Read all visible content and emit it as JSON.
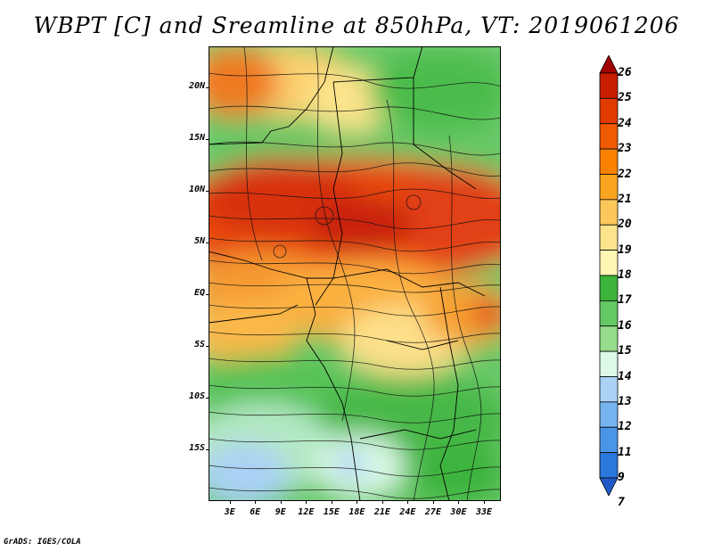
{
  "title": "WBPT [C] and Sreamline at 850hPa, VT: 2019061206",
  "footer": "GrADS: IGES/COLA",
  "map": {
    "lat_labels": [
      "20N",
      "15N",
      "10N",
      "5N",
      "EQ",
      "5S",
      "10S",
      "15S"
    ],
    "lon_labels": [
      "3E",
      "6E",
      "9E",
      "12E",
      "15E",
      "18E",
      "21E",
      "24E",
      "27E",
      "30E",
      "33E"
    ],
    "lat_range": [
      -20,
      24
    ],
    "lon_range": [
      0.5,
      35
    ]
  },
  "colorbar": {
    "labels": [
      "26",
      "25",
      "24",
      "23",
      "22",
      "21",
      "20",
      "19",
      "18",
      "17",
      "16",
      "15",
      "14",
      "13",
      "12",
      "11",
      "9",
      "7"
    ],
    "colors": [
      "#a00000",
      "#c81e00",
      "#e03c00",
      "#f05a00",
      "#fa8200",
      "#faa520",
      "#fcc85c",
      "#fde48c",
      "#fff5b4",
      "#3cb43c",
      "#64c864",
      "#96dc8c",
      "#dcfae6",
      "#aad2f5",
      "#78b4f0",
      "#4a96e6",
      "#2a78dc",
      "#1e5ac8"
    ]
  }
}
